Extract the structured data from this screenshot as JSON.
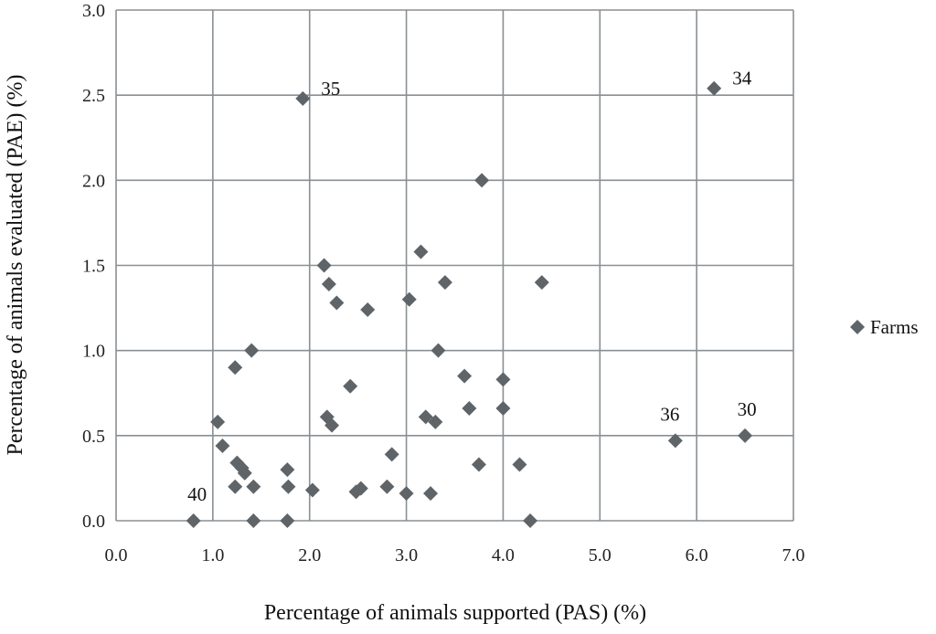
{
  "chart_data": {
    "type": "scatter",
    "title": "",
    "xlabel": "Percentage of animals supported (PAS) (%)",
    "ylabel": "Percentage of animals evaluated (PAE) (%)",
    "xlim": [
      0,
      7
    ],
    "ylim": [
      0,
      3
    ],
    "x_ticks": [
      "0.0",
      "1.0",
      "2.0",
      "3.0",
      "4.0",
      "5.0",
      "6.0",
      "7.0"
    ],
    "y_ticks": [
      "0.0",
      "0.5",
      "1.0",
      "1.5",
      "2.0",
      "2.5",
      "3.0"
    ],
    "grid": true,
    "legend_position": "right",
    "series": [
      {
        "name": "Farms",
        "color": "#5f6468",
        "marker": "diamond",
        "points": [
          {
            "x": 1.93,
            "y": 2.48,
            "label": "35"
          },
          {
            "x": 6.18,
            "y": 2.54,
            "label": "34"
          },
          {
            "x": 3.78,
            "y": 2.0
          },
          {
            "x": 3.15,
            "y": 1.58
          },
          {
            "x": 2.15,
            "y": 1.5
          },
          {
            "x": 2.2,
            "y": 1.39
          },
          {
            "x": 3.4,
            "y": 1.4
          },
          {
            "x": 4.4,
            "y": 1.4
          },
          {
            "x": 2.28,
            "y": 1.28
          },
          {
            "x": 3.03,
            "y": 1.3
          },
          {
            "x": 2.6,
            "y": 1.24
          },
          {
            "x": 1.4,
            "y": 1.0
          },
          {
            "x": 3.33,
            "y": 1.0
          },
          {
            "x": 1.23,
            "y": 0.9
          },
          {
            "x": 3.6,
            "y": 0.85
          },
          {
            "x": 4.0,
            "y": 0.83
          },
          {
            "x": 2.42,
            "y": 0.79
          },
          {
            "x": 3.65,
            "y": 0.66
          },
          {
            "x": 4.0,
            "y": 0.66
          },
          {
            "x": 2.18,
            "y": 0.61
          },
          {
            "x": 3.2,
            "y": 0.61
          },
          {
            "x": 1.05,
            "y": 0.58
          },
          {
            "x": 2.23,
            "y": 0.56
          },
          {
            "x": 3.3,
            "y": 0.58
          },
          {
            "x": 6.5,
            "y": 0.5,
            "label": "30"
          },
          {
            "x": 5.78,
            "y": 0.47,
            "label": "36"
          },
          {
            "x": 1.1,
            "y": 0.44
          },
          {
            "x": 2.85,
            "y": 0.39
          },
          {
            "x": 1.25,
            "y": 0.34
          },
          {
            "x": 3.75,
            "y": 0.33
          },
          {
            "x": 4.17,
            "y": 0.33
          },
          {
            "x": 1.3,
            "y": 0.31
          },
          {
            "x": 1.33,
            "y": 0.28
          },
          {
            "x": 1.77,
            "y": 0.3
          },
          {
            "x": 1.23,
            "y": 0.2
          },
          {
            "x": 1.42,
            "y": 0.2
          },
          {
            "x": 1.78,
            "y": 0.2
          },
          {
            "x": 2.8,
            "y": 0.2
          },
          {
            "x": 2.03,
            "y": 0.18
          },
          {
            "x": 2.48,
            "y": 0.17
          },
          {
            "x": 2.53,
            "y": 0.19
          },
          {
            "x": 3.0,
            "y": 0.16
          },
          {
            "x": 3.25,
            "y": 0.16
          },
          {
            "x": 0.8,
            "y": 0.0,
            "label": "40"
          },
          {
            "x": 1.42,
            "y": 0.0
          },
          {
            "x": 1.77,
            "y": 0.0
          },
          {
            "x": 4.28,
            "y": 0.0
          }
        ]
      }
    ]
  }
}
